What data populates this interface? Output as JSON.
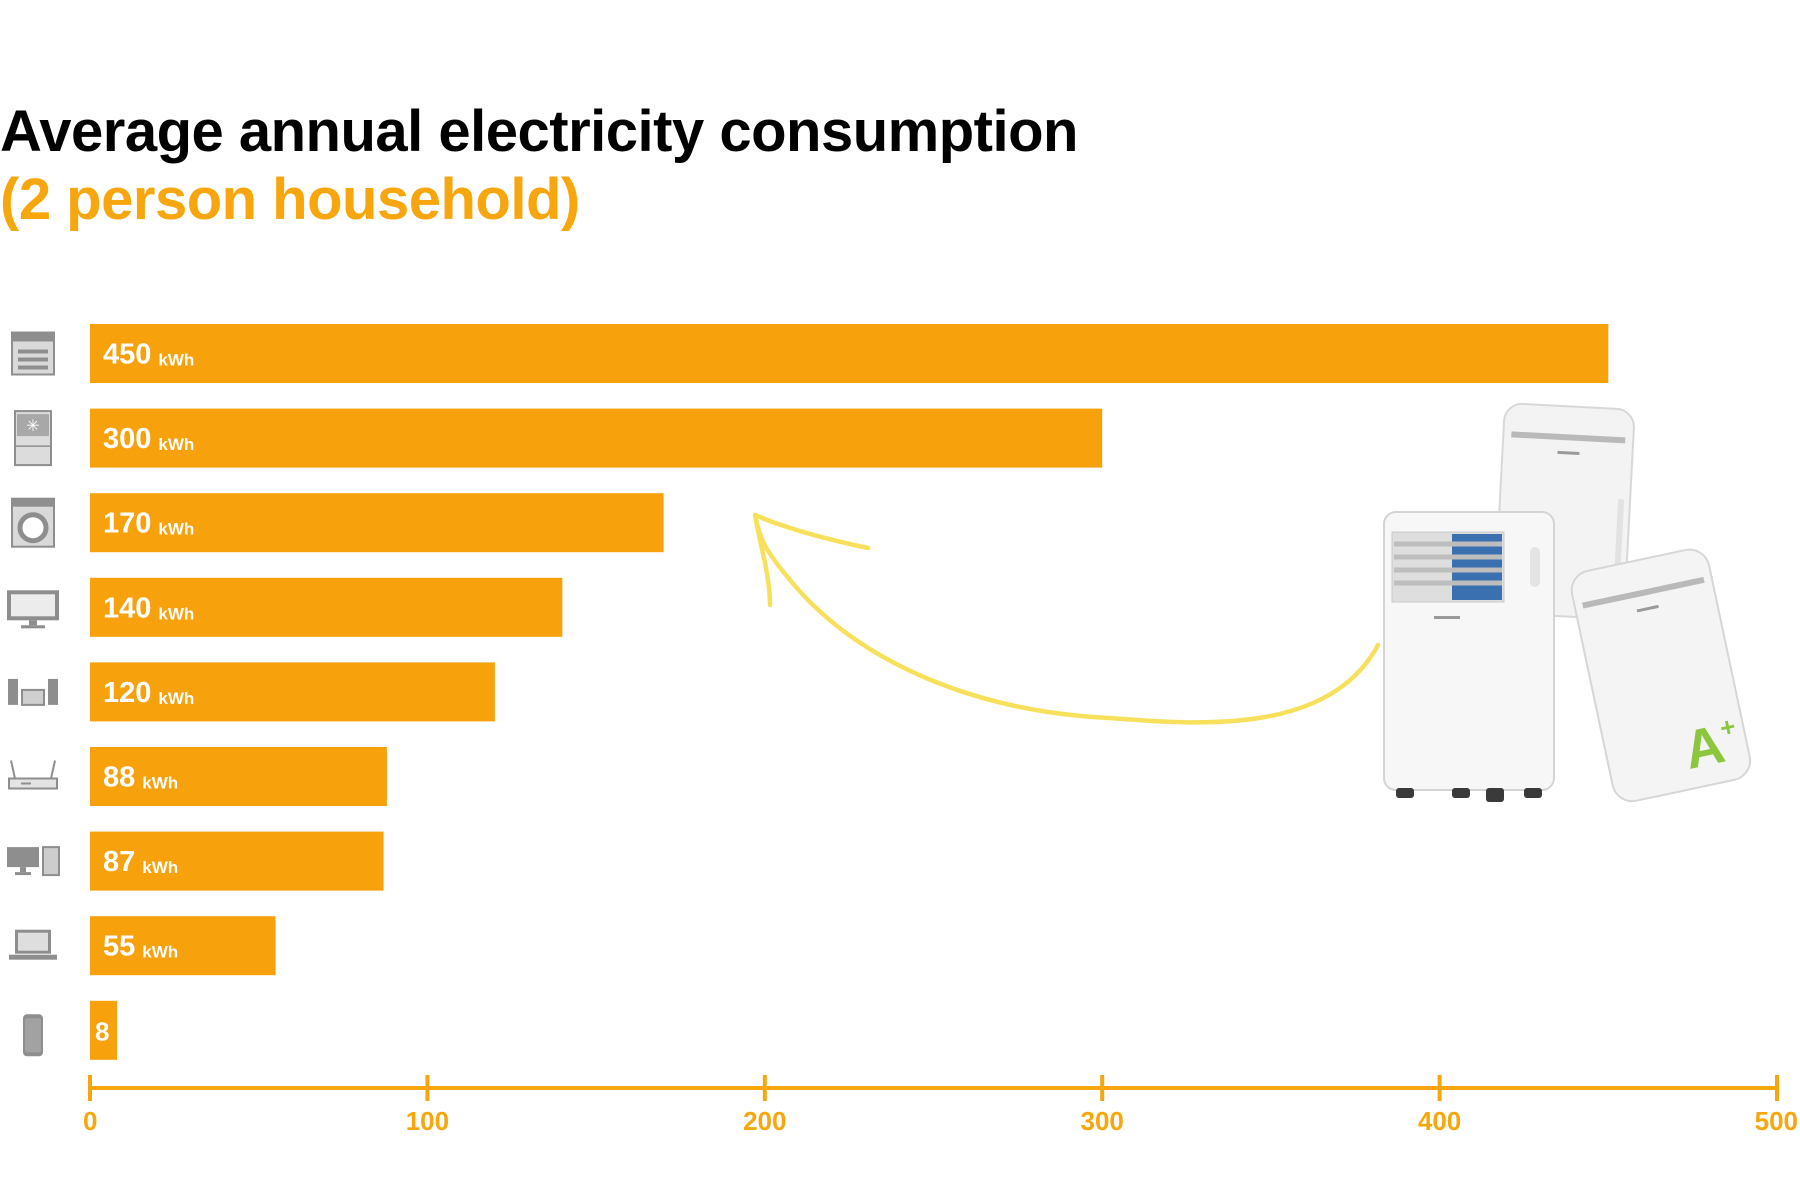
{
  "chart_data": {
    "type": "bar",
    "orientation": "horizontal",
    "title": "Average annual electricity consumption",
    "subtitle": "(2 person household)",
    "unit": "kWh",
    "categories": [
      "stove",
      "fridge",
      "washing-machine",
      "tv",
      "stereo",
      "router",
      "desktop-pc",
      "laptop",
      "smartphone"
    ],
    "values": [
      450,
      300,
      170,
      140,
      120,
      88,
      87,
      55,
      8
    ],
    "bar_labels": [
      "450",
      "300",
      "170",
      "140",
      "120",
      "88",
      "87",
      "55",
      "8"
    ],
    "xlim": [
      0,
      500
    ],
    "xticks": [
      0,
      100,
      200,
      300,
      400,
      500
    ],
    "xtick_labels": [
      "0",
      "100",
      "200",
      "300",
      "400",
      "500"
    ],
    "grid": false,
    "legend": "none",
    "annotation": {
      "type": "arrow",
      "from": "portable-air-conditioner-image",
      "to_category": "washing-machine",
      "badge_text": "A+"
    },
    "colors": {
      "bar": "#f7a10d",
      "axis": "#f7a70d",
      "arrow": "#f7e15c",
      "icon": "#8e8e8e",
      "badge": "#8cc63f"
    }
  }
}
